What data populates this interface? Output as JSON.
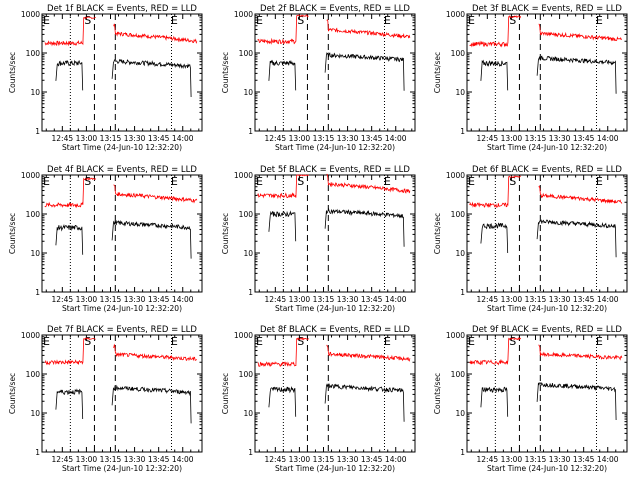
{
  "chart_data": {
    "type": "line",
    "layout": "3x3 grid",
    "x_ticks": [
      "12:45",
      "13:00",
      "13:15",
      "13:30",
      "13:45",
      "14:00"
    ],
    "x_label": "Start Time (24-Jun-10 12:32:20)",
    "y_label": "Counts/sec",
    "y_scale": "log",
    "y_ticks": [
      "1",
      "10",
      "100",
      "1000"
    ],
    "ylim": [
      1,
      1000
    ],
    "xlim": [
      "12:32:20",
      "14:12:00"
    ],
    "series_colors": {
      "events": "#000000",
      "lld": "#ff0000"
    },
    "region_markers": {
      "E1": {
        "label": "E",
        "time": "12:32:20"
      },
      "S": {
        "label": "S",
        "time": "12:58:00"
      },
      "E2": {
        "label": "E",
        "time": "13:52:00"
      }
    },
    "dotted_lines": [
      "12:50:00",
      "13:53:00"
    ],
    "dashed_lines": [
      "13:05:00",
      "13:18:00"
    ],
    "panels": [
      {
        "title": "Det 1f BLACK = Events, RED = LLD",
        "lld": {
          "pre": 180,
          "mid": 800,
          "post": 320,
          "end": 200
        },
        "events": {
          "pre": 55,
          "post": 62
        }
      },
      {
        "title": "Det 2f BLACK = Events, RED = LLD",
        "lld": {
          "pre": 200,
          "mid": 900,
          "post": 400,
          "end": 260
        },
        "events": {
          "pre": 55,
          "post": 90
        }
      },
      {
        "title": "Det 3f BLACK = Events, RED = LLD",
        "lld": {
          "pre": 170,
          "mid": 850,
          "post": 320,
          "end": 220
        },
        "events": {
          "pre": 55,
          "post": 75
        }
      },
      {
        "title": "Det 4f BLACK = Events, RED = LLD",
        "lld": {
          "pre": 170,
          "mid": 800,
          "post": 330,
          "end": 220
        },
        "events": {
          "pre": 45,
          "post": 60
        }
      },
      {
        "title": "Det 5f BLACK = Events, RED = LLD",
        "lld": {
          "pre": 300,
          "mid": 1000,
          "post": 600,
          "end": 380
        },
        "events": {
          "pre": 100,
          "post": 120
        }
      },
      {
        "title": "Det 6f BLACK = Events, RED = LLD",
        "lld": {
          "pre": 170,
          "mid": 900,
          "post": 300,
          "end": 200
        },
        "events": {
          "pre": 50,
          "post": 65
        }
      },
      {
        "title": "Det 7f BLACK = Events, RED = LLD",
        "lld": {
          "pre": 200,
          "mid": 800,
          "post": 320,
          "end": 240
        },
        "events": {
          "pre": 35,
          "post": 45
        }
      },
      {
        "title": "Det 8f BLACK = Events, RED = LLD",
        "lld": {
          "pre": 180,
          "mid": 800,
          "post": 330,
          "end": 240
        },
        "events": {
          "pre": 40,
          "post": 50
        }
      },
      {
        "title": "Det 9f BLACK = Events, RED = LLD",
        "lld": {
          "pre": 200,
          "mid": 800,
          "post": 320,
          "end": 260
        },
        "events": {
          "pre": 40,
          "post": 55
        }
      }
    ]
  }
}
